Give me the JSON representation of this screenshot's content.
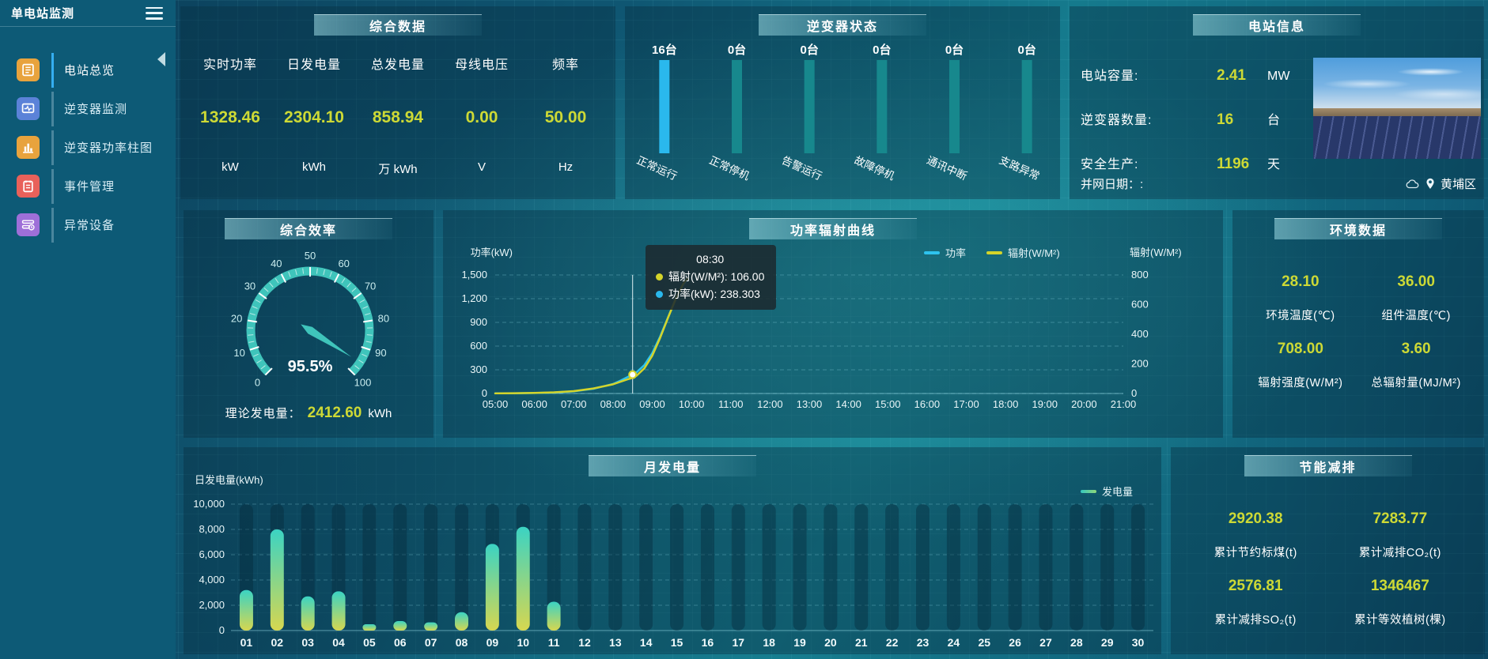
{
  "app": {
    "title": "单电站监测"
  },
  "sidebar": {
    "items": [
      {
        "label": "电站总览",
        "icon": "station-overview-icon",
        "color": "#e8a33d",
        "active": true
      },
      {
        "label": "逆变器监测",
        "icon": "inverter-monitor-icon",
        "color": "#5b82d8",
        "active": false
      },
      {
        "label": "逆变器功率柱图",
        "icon": "inverter-power-bars-icon",
        "color": "#e8a33d",
        "active": false
      },
      {
        "label": "事件管理",
        "icon": "event-management-icon",
        "color": "#e8615a",
        "active": false
      },
      {
        "label": "异常设备",
        "icon": "abnormal-device-icon",
        "color": "#9e6fd8",
        "active": false
      }
    ]
  },
  "panels": {
    "summary": {
      "title": "综合数据",
      "metrics": [
        {
          "label": "实时功率",
          "value": "1328.46",
          "unit": "kW"
        },
        {
          "label": "日发电量",
          "value": "2304.10",
          "unit": "kWh"
        },
        {
          "label": "总发电量",
          "value": "858.94",
          "unit": "万 kWh"
        },
        {
          "label": "母线电压",
          "value": "0.00",
          "unit": "V"
        },
        {
          "label": "频率",
          "value": "50.00",
          "unit": "Hz"
        }
      ]
    },
    "inverter_status": {
      "title": "逆变器状态"
    },
    "station_info": {
      "title": "电站信息",
      "rows": [
        {
          "label": "电站容量:",
          "value": "2.41",
          "unit": "MW"
        },
        {
          "label": "逆变器数量:",
          "value": "16",
          "unit": "台"
        },
        {
          "label": "安全生产:",
          "value": "1196",
          "unit": "天"
        }
      ],
      "grid_date_label": "并网日期：:",
      "location": "黄埔区"
    },
    "efficiency": {
      "title": "综合效率",
      "theory_label": "理论发电量：",
      "theory_value": "2412.60",
      "theory_unit": "kWh"
    },
    "power_curve": {
      "title": "功率辐射曲线"
    },
    "environment": {
      "title": "环境数据",
      "metrics": [
        {
          "value": "28.10",
          "label": "环境温度(℃)"
        },
        {
          "value": "36.00",
          "label": "组件温度(℃)"
        },
        {
          "value": "708.00",
          "label": "辐射强度(W/M²)"
        },
        {
          "value": "3.60",
          "label": "总辐射量(MJ/M²)"
        }
      ]
    },
    "monthly": {
      "title": "月发电量"
    },
    "energy_saving": {
      "title": "节能减排",
      "metrics": [
        {
          "value": "2920.38",
          "label": "累计节约标煤(t)"
        },
        {
          "value": "7283.77",
          "label": "累计减排CO₂(t)"
        },
        {
          "value": "2576.81",
          "label": "累计减排SO₂(t)"
        },
        {
          "value": "1346467",
          "label": "累计等效植树(棵)"
        }
      ]
    }
  },
  "chart_data": [
    {
      "id": "inverter_status",
      "type": "bar",
      "title": "逆变器状态",
      "categories": [
        "正常运行",
        "正常停机",
        "告警运行",
        "故障停机",
        "通讯中断",
        "支路异常"
      ],
      "values": [
        16,
        0,
        0,
        0,
        0,
        0
      ],
      "unit": "台",
      "active_color": "#2ab8ed",
      "track_color": "#17888d"
    },
    {
      "id": "efficiency_gauge",
      "type": "gauge",
      "title": "综合效率",
      "value": 95.5,
      "value_label": "95.5%",
      "min": 0,
      "max": 100,
      "tick_step": 10,
      "color": "#3fc4bb"
    },
    {
      "id": "power_radiation",
      "type": "line",
      "title": "功率辐射曲线",
      "x_labels": [
        "05:00",
        "06:00",
        "07:00",
        "08:00",
        "09:00",
        "10:00",
        "11:00",
        "12:00",
        "13:00",
        "14:00",
        "15:00",
        "16:00",
        "17:00",
        "18:00",
        "19:00",
        "20:00",
        "21:00"
      ],
      "y_left": {
        "label": "功率(kW)",
        "min": 0,
        "max": 1500,
        "step": 300
      },
      "y_right": {
        "label": "辐射(W/M²)",
        "min": 0,
        "max": 800,
        "step": 200
      },
      "legend": [
        "功率",
        "辐射(W/M²)"
      ],
      "series": [
        {
          "name": "功率",
          "axis": "left",
          "color": "#2ec3ee",
          "points": [
            [
              5,
              2
            ],
            [
              5.5,
              3
            ],
            [
              6,
              6
            ],
            [
              6.5,
              12
            ],
            [
              7,
              28
            ],
            [
              7.5,
              60
            ],
            [
              8,
              120
            ],
            [
              8.2,
              165
            ],
            [
              8.4,
              215
            ],
            [
              8.5,
              238.3
            ],
            [
              8.6,
              268
            ],
            [
              8.8,
              360
            ],
            [
              9,
              510
            ],
            [
              9.2,
              720
            ],
            [
              9.4,
              960
            ],
            [
              9.6,
              1200
            ],
            [
              9.8,
              1390
            ],
            [
              9.9,
              1430
            ]
          ]
        },
        {
          "name": "辐射(W/M²)",
          "axis": "right",
          "color": "#d4d42a",
          "points": [
            [
              5,
              1
            ],
            [
              5.5,
              2
            ],
            [
              6,
              4
            ],
            [
              6.5,
              8
            ],
            [
              7,
              16
            ],
            [
              7.5,
              34
            ],
            [
              8,
              62
            ],
            [
              8.2,
              80
            ],
            [
              8.4,
              98
            ],
            [
              8.5,
              106
            ],
            [
              8.6,
              120
            ],
            [
              8.8,
              170
            ],
            [
              9,
              255
            ],
            [
              9.2,
              375
            ],
            [
              9.4,
              510
            ],
            [
              9.6,
              640
            ],
            [
              9.8,
              745
            ],
            [
              9.9,
              775
            ]
          ]
        }
      ],
      "hover": {
        "time": 8.5,
        "x_label": "08:30",
        "rows": [
          {
            "name": "辐射(W/M²)",
            "value": "106.00",
            "color": "#d4d42a"
          },
          {
            "name": "功率(kW)",
            "value": "238.303",
            "color": "#2ab8ed"
          }
        ]
      }
    },
    {
      "id": "monthly_generation",
      "type": "bar",
      "title": "月发电量",
      "ylabel": "日发电量(kWh)",
      "ylim": [
        0,
        10000
      ],
      "tick_step": 2000,
      "legend": "发电量",
      "categories": [
        "01",
        "02",
        "03",
        "04",
        "05",
        "06",
        "07",
        "08",
        "09",
        "10",
        "11",
        "12",
        "13",
        "14",
        "15",
        "16",
        "17",
        "18",
        "19",
        "20",
        "21",
        "22",
        "23",
        "24",
        "25",
        "26",
        "27",
        "28",
        "29",
        "30"
      ],
      "values": [
        3200,
        8000,
        2700,
        3100,
        500,
        750,
        650,
        1450,
        6850,
        8200,
        2280,
        0,
        0,
        0,
        0,
        0,
        0,
        0,
        0,
        0,
        0,
        0,
        0,
        0,
        0,
        0,
        0,
        0,
        0,
        0
      ],
      "bar_color_top": "#3bd3c3",
      "bar_color_bottom": "#d6d750"
    }
  ]
}
